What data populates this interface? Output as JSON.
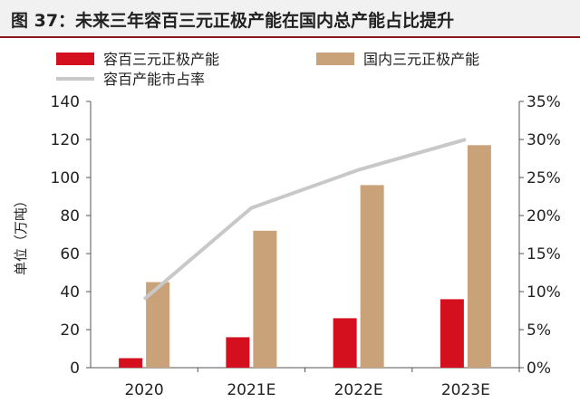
{
  "title": "图 37：未来三年容百三元正极产能在国内总产能占比提升",
  "chart_data": {
    "type": "bar",
    "categories": [
      "2020",
      "2021E",
      "2022E",
      "2023E"
    ],
    "series": [
      {
        "name": "容百三元正极产能",
        "type": "bar",
        "axis": "left",
        "color": "#d40f1e",
        "values": [
          5,
          16,
          26,
          36
        ]
      },
      {
        "name": "国内三元正极产能",
        "type": "bar",
        "axis": "left",
        "color": "#c9a27a",
        "values": [
          45,
          72,
          96,
          117
        ]
      },
      {
        "name": "容百产能市占率",
        "type": "line",
        "axis": "right",
        "color": "#c8c8c8",
        "values": [
          0.09,
          0.21,
          0.26,
          0.3
        ]
      }
    ],
    "ylabel": "单位（万吨）",
    "ylim": [
      0,
      140
    ],
    "yticks": [
      0,
      20,
      40,
      60,
      80,
      100,
      120,
      140
    ],
    "y2lim": [
      0,
      0.35
    ],
    "y2ticks": [
      "0%",
      "5%",
      "10%",
      "15%",
      "20%",
      "25%",
      "30%",
      "35%"
    ],
    "legend": "top",
    "grid": false
  }
}
